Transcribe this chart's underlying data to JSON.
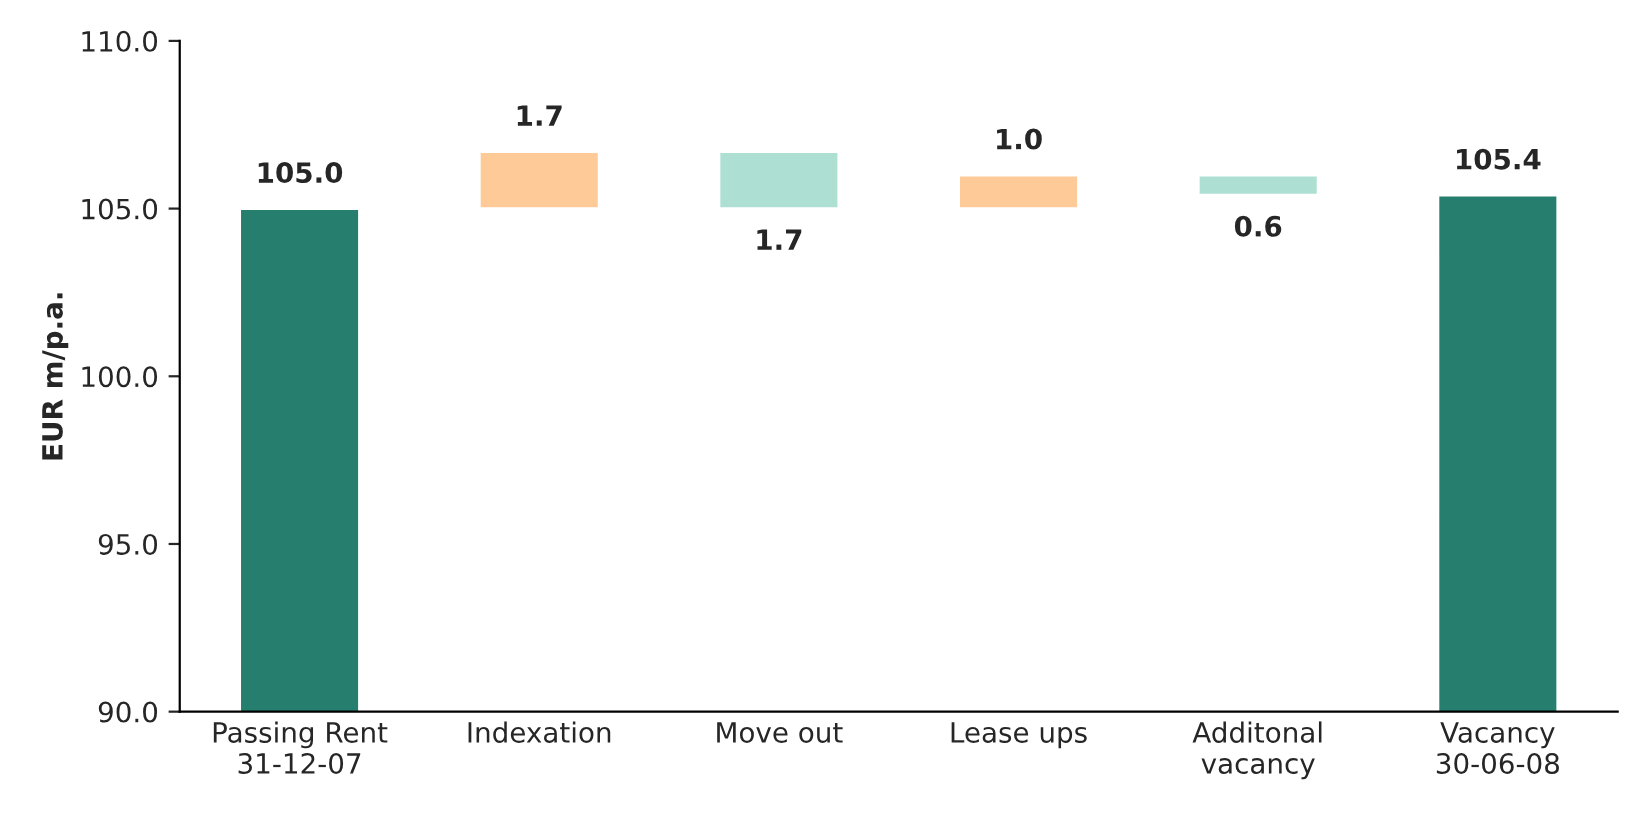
{
  "chart_data": {
    "type": "bar",
    "ylabel": "EUR m/p.a.",
    "categories": [
      "Passing Rent\n31-12-07",
      "Indexation",
      "Move out",
      "Lease ups",
      "Additonal\nvacancy",
      "Vacancy\n30-06-08"
    ],
    "values": [
      105.0,
      1.7,
      -1.7,
      1.0,
      -0.6,
      105.4
    ],
    "base": [
      null,
      105.0,
      106.7,
      105.0,
      106.0,
      null
    ],
    "colors": [
      "#267f6e",
      "#fdca98",
      "#addfd3",
      "#fdca98",
      "#addfd3",
      "#267f6e"
    ],
    "value_labels": [
      "105.0",
      "1.7",
      "1.7",
      "1.0",
      "0.6",
      "105.4"
    ],
    "ylim": [
      90.0,
      110.0
    ],
    "yticks": [
      {
        "value": 90,
        "label": "90.0"
      },
      {
        "value": 95,
        "label": "95.0"
      },
      {
        "value": 100,
        "label": "100.0"
      },
      {
        "value": 105,
        "label": "105.0"
      },
      {
        "value": 110,
        "label": "110.0"
      }
    ],
    "grid": false,
    "legend": false
  }
}
